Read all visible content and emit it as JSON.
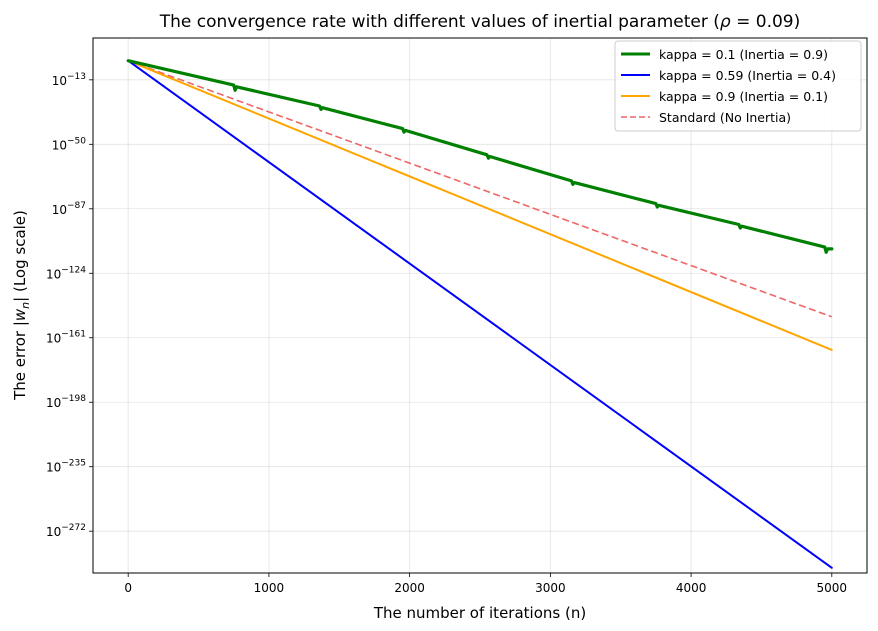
{
  "chart_data": {
    "type": "line",
    "title": "The convergence rate with different values of inertial parameter (ρ = 0.09)",
    "title_prefix": "The convergence rate with different values of inertial parameter (",
    "title_rho": "ρ",
    "title_eq": " = 0.09",
    "title_suffix": ")",
    "xlabel": "The number of iterations (n)",
    "ylabel": "The error |w_n| (Log scale)",
    "ylabel_parts": {
      "pre": "The error |",
      "w": "w",
      "sub": "n",
      "post": "| (Log scale)"
    },
    "xlim": [
      -250,
      5250
    ],
    "ylim_log10": [
      -296,
      11
    ],
    "x_ticks": [
      0,
      1000,
      2000,
      3000,
      4000,
      5000
    ],
    "x_tick_labels": [
      "0",
      "1000",
      "2000",
      "3000",
      "4000",
      "5000"
    ],
    "y_ticks_log10": [
      -13,
      -50,
      -87,
      -124,
      -161,
      -198,
      -235,
      -272
    ],
    "y_tick_base": "10",
    "y_tick_exponents": [
      "−13",
      "−50",
      "−87",
      "−124",
      "−161",
      "−198",
      "−235",
      "−272"
    ],
    "grid": true,
    "legend_position": "top-right",
    "series": [
      {
        "name": "kappa = 0.1 (Inertia = 0.9)",
        "color": "#008000",
        "style": "solid",
        "width": "thick",
        "points_log10": [
          [
            0,
            -2
          ],
          [
            750,
            -16
          ],
          [
            760,
            -19
          ],
          [
            770,
            -17
          ],
          [
            1360,
            -28
          ],
          [
            1370,
            -30
          ],
          [
            1380,
            -29
          ],
          [
            1950,
            -41
          ],
          [
            1960,
            -43
          ],
          [
            1970,
            -42
          ],
          [
            2550,
            -56
          ],
          [
            2560,
            -58
          ],
          [
            2570,
            -57
          ],
          [
            3150,
            -71
          ],
          [
            3160,
            -73
          ],
          [
            3170,
            -72
          ],
          [
            3750,
            -84
          ],
          [
            3760,
            -86
          ],
          [
            3770,
            -85
          ],
          [
            4340,
            -96
          ],
          [
            4350,
            -98
          ],
          [
            4360,
            -97
          ],
          [
            4950,
            -109
          ],
          [
            4960,
            -112
          ],
          [
            4970,
            -110
          ],
          [
            5000,
            -110
          ]
        ]
      },
      {
        "name": "kappa = 0.59 (Inertia = 0.4)",
        "color": "#0000ff",
        "style": "solid",
        "width": "normal",
        "points_log10": [
          [
            0,
            -2
          ],
          [
            5000,
            -293
          ]
        ]
      },
      {
        "name": "kappa = 0.9 (Inertia = 0.1)",
        "color": "#ffa500",
        "style": "solid",
        "width": "normal",
        "points_log10": [
          [
            0,
            -2
          ],
          [
            5000,
            -168
          ]
        ]
      },
      {
        "name": "Standard (No Inertia)",
        "color": "#ee6666",
        "style": "dashed",
        "width": "normal",
        "points_log10": [
          [
            0,
            -2
          ],
          [
            5000,
            -149
          ]
        ]
      }
    ]
  }
}
